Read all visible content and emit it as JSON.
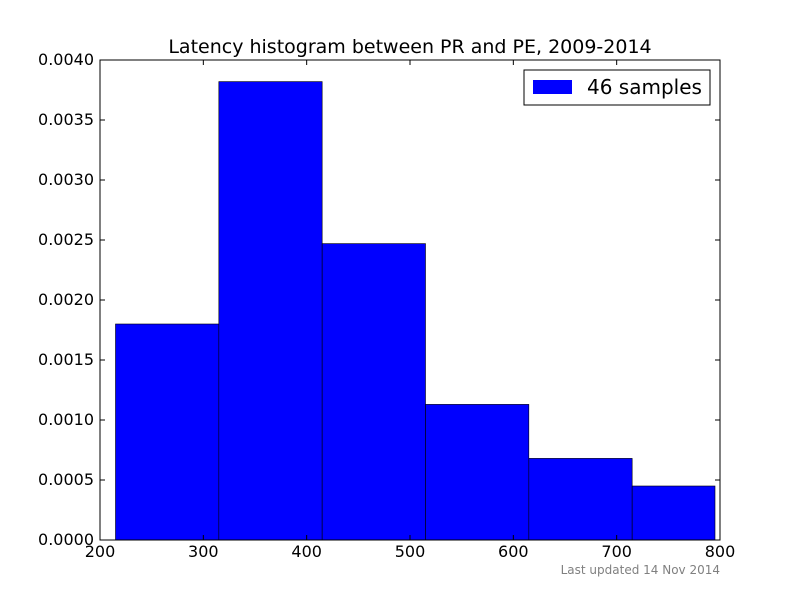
{
  "chart_data": {
    "type": "bar",
    "title": "Latency histogram between PR and PE, 2009-2014",
    "xlabel": "",
    "ylabel": "",
    "xlim": [
      200,
      800
    ],
    "ylim": [
      0,
      0.004
    ],
    "xticks": [
      200,
      300,
      400,
      500,
      600,
      700,
      800
    ],
    "xtick_labels": [
      "200",
      "300",
      "400",
      "500",
      "600",
      "700",
      "800"
    ],
    "yticks": [
      0,
      0.0005,
      0.001,
      0.0015,
      0.002,
      0.0025,
      0.003,
      0.0035,
      0.004
    ],
    "ytick_labels": [
      "0.0000",
      "0.0005",
      "0.0010",
      "0.0015",
      "0.0020",
      "0.0025",
      "0.0030",
      "0.0035",
      "0.0040"
    ],
    "bins": [
      {
        "from": 215,
        "to": 315,
        "value": 0.0018
      },
      {
        "from": 315,
        "to": 415,
        "value": 0.00382
      },
      {
        "from": 415,
        "to": 515,
        "value": 0.00247
      },
      {
        "from": 515,
        "to": 615,
        "value": 0.00113
      },
      {
        "from": 615,
        "to": 715,
        "value": 0.00068
      },
      {
        "from": 715,
        "to": 815,
        "value": 0.00045
      }
    ],
    "series": [
      {
        "name": "46 samples",
        "color": "#0000ff"
      }
    ],
    "legend": {
      "position": "top-right",
      "label": "46 samples"
    },
    "grid": false
  },
  "footnote": "Last updated 14 Nov 2014"
}
